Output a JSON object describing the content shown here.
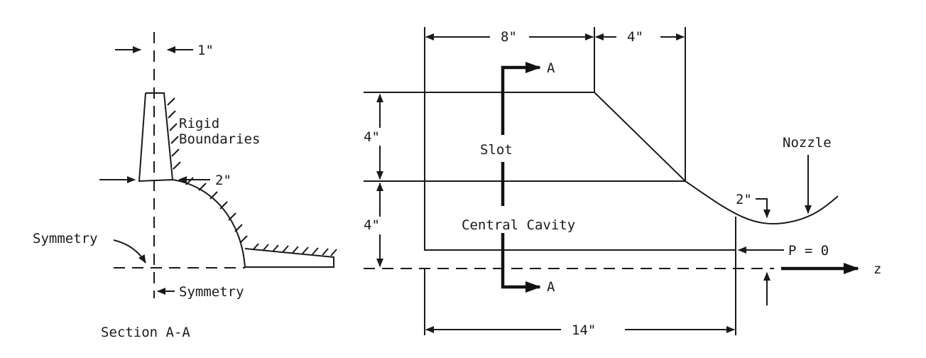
{
  "section": {
    "dim_top": "1\"",
    "rigid_label_line1": "Rigid",
    "rigid_label_line2": "Boundaries",
    "dim_base": "2\"",
    "symmetry_left": "Symmetry",
    "symmetry_bottom": "Symmetry",
    "caption": "Section A-A"
  },
  "main": {
    "dim_8": "8\"",
    "dim_4_top": "4\"",
    "section_marker": "A",
    "dim_4_left_upper": "4\"",
    "dim_4_left_lower": "4\"",
    "slot_label": "Slot",
    "nozzle_label": "Nozzle",
    "nozzle_dim": "2\"",
    "cavity_label": "Central Cavity",
    "pressure_label": "P = 0",
    "axis_label": "z",
    "dim_14": "14\""
  }
}
